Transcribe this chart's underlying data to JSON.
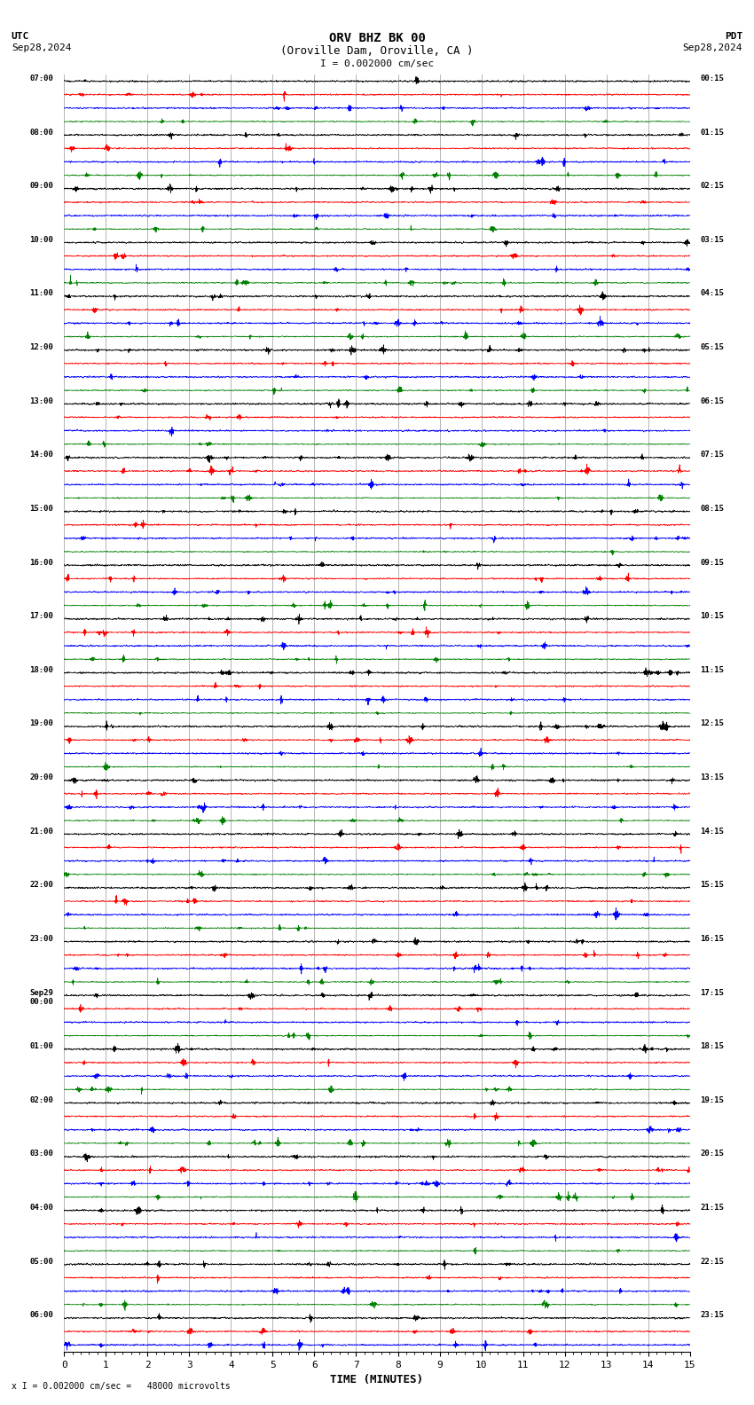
{
  "title_line1": "ORV BHZ BK 00",
  "title_line2": "(Oroville Dam, Oroville, CA )",
  "scale_label": "I = 0.002000 cm/sec",
  "utc_label": "UTC",
  "pdt_label": "PDT",
  "date_left": "Sep28,2024",
  "date_right": "Sep28,2024",
  "xlabel": "TIME (MINUTES)",
  "footer": "x I = 0.002000 cm/sec =   48000 microvolts",
  "xlabel_ticks": [
    0,
    1,
    2,
    3,
    4,
    5,
    6,
    7,
    8,
    9,
    10,
    11,
    12,
    13,
    14,
    15
  ],
  "colors": [
    "black",
    "red",
    "blue",
    "green"
  ],
  "background": "#ffffff",
  "figwidth": 8.5,
  "figheight": 15.84,
  "left_times": [
    "07:00",
    "",
    "",
    "",
    "08:00",
    "",
    "",
    "",
    "09:00",
    "",
    "",
    "",
    "10:00",
    "",
    "",
    "",
    "11:00",
    "",
    "",
    "",
    "12:00",
    "",
    "",
    "",
    "13:00",
    "",
    "",
    "",
    "14:00",
    "",
    "",
    "",
    "15:00",
    "",
    "",
    "",
    "16:00",
    "",
    "",
    "",
    "17:00",
    "",
    "",
    "",
    "18:00",
    "",
    "",
    "",
    "19:00",
    "",
    "",
    "",
    "20:00",
    "",
    "",
    "",
    "21:00",
    "",
    "",
    "",
    "22:00",
    "",
    "",
    "",
    "23:00",
    "",
    "",
    "",
    "Sep29\n00:00",
    "",
    "",
    "",
    "01:00",
    "",
    "",
    "",
    "02:00",
    "",
    "",
    "",
    "03:00",
    "",
    "",
    "",
    "04:00",
    "",
    "",
    "",
    "05:00",
    "",
    "",
    "",
    "06:00",
    "",
    ""
  ],
  "right_times": [
    "00:15",
    "",
    "",
    "",
    "01:15",
    "",
    "",
    "",
    "02:15",
    "",
    "",
    "",
    "03:15",
    "",
    "",
    "",
    "04:15",
    "",
    "",
    "",
    "05:15",
    "",
    "",
    "",
    "06:15",
    "",
    "",
    "",
    "07:15",
    "",
    "",
    "",
    "08:15",
    "",
    "",
    "",
    "09:15",
    "",
    "",
    "",
    "10:15",
    "",
    "",
    "",
    "11:15",
    "",
    "",
    "",
    "12:15",
    "",
    "",
    "",
    "13:15",
    "",
    "",
    "",
    "14:15",
    "",
    "",
    "",
    "15:15",
    "",
    "",
    "",
    "16:15",
    "",
    "",
    "",
    "17:15",
    "",
    "",
    "",
    "18:15",
    "",
    "",
    "",
    "19:15",
    "",
    "",
    "",
    "20:15",
    "",
    "",
    "",
    "21:15",
    "",
    "",
    "",
    "22:15",
    "",
    "",
    "",
    "23:15",
    "",
    ""
  ],
  "grid_color": "#999999",
  "trace_lw": 0.5,
  "spike_row": 33,
  "spike_time": 2.3,
  "spike_amp": 12.0
}
